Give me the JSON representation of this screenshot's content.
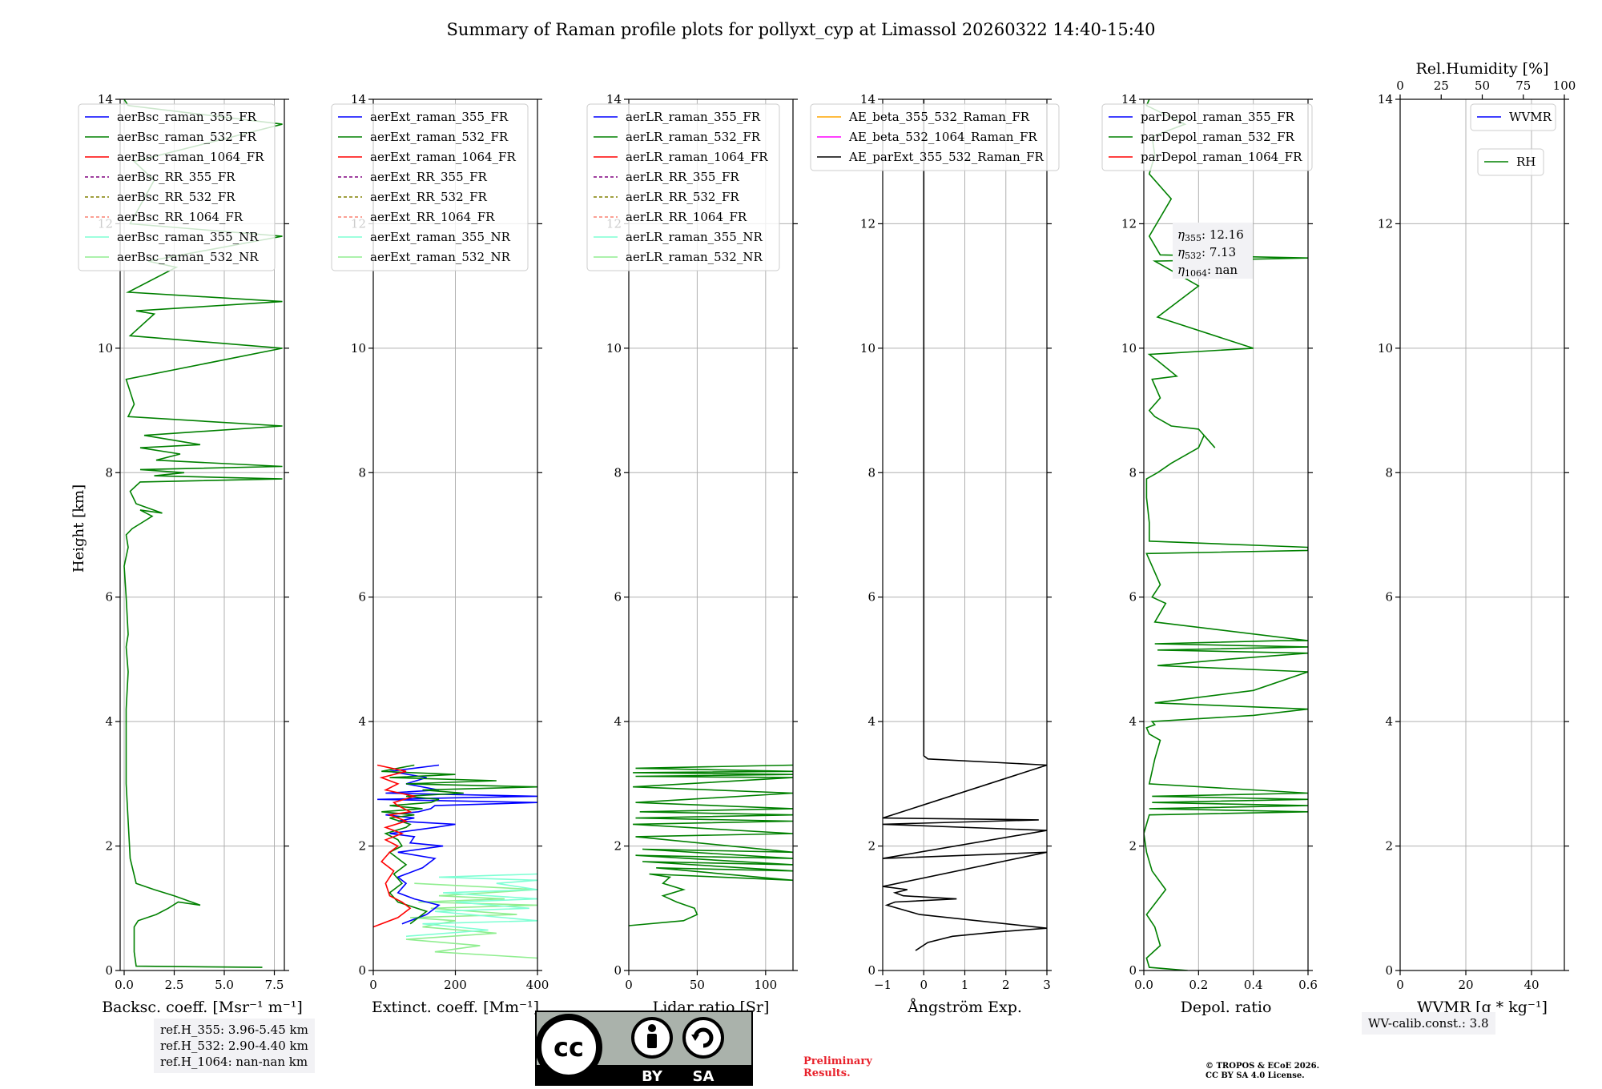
{
  "title": "Summary of Raman profile plots for pollyxt_cyp at Limassol 20260322 14:40-15:40",
  "ylabel": "Height [km]",
  "ytick_labels": [
    "0",
    "2",
    "4",
    "6",
    "8",
    "10",
    "12",
    "14"
  ],
  "colors": {
    "blue": "#0000ff",
    "green": "#008000",
    "red": "#ff0000",
    "purple": "#800080",
    "olive": "#808000",
    "salmon": "#fa8072",
    "cyan": "#7fffd4",
    "lightgreen": "#90ee90",
    "orange": "#ffa500",
    "magenta": "#ff00ff",
    "black": "#000000",
    "grid": "#b0b0b0"
  },
  "chart_data": [
    {
      "type": "line",
      "id": "bsc",
      "xlabel": "Backsc. coeff. [Msr⁻¹ m⁻¹]",
      "xlim": [
        -0.2,
        8.0
      ],
      "ylim": [
        0,
        14
      ],
      "xticks": [
        0,
        2.5,
        5.0,
        7.5
      ],
      "xtick_labels": [
        "0.0",
        "2.5",
        "5.0",
        "7.5"
      ],
      "legend": [
        "aerBsc_raman_355_FR",
        "aerBsc_raman_532_FR",
        "aerBsc_raman_1064_FR",
        "aerBsc_RR_355_FR",
        "aerBsc_RR_532_FR",
        "aerBsc_RR_1064_FR",
        "aerBsc_raman_355_NR",
        "aerBsc_raman_532_NR"
      ],
      "legend_colors": [
        "blue",
        "green",
        "red",
        "purple",
        "olive",
        "salmon",
        "cyan",
        "lightgreen"
      ],
      "legend_dashed": [
        false,
        false,
        false,
        true,
        true,
        true,
        false,
        false
      ],
      "legend_loc": "top-left",
      "series": [
        {
          "name": "aerBsc_raman_532_FR",
          "color": "green",
          "x": [
            6.9,
            0.6,
            0.5,
            0.5,
            0.5,
            0.7,
            1.6,
            2.2,
            2.7,
            3.8,
            2.5,
            1.5,
            0.6,
            0.3,
            0.2,
            0.1,
            0.1,
            0.1,
            0.2,
            0.1,
            0.2,
            0.1,
            0.0,
            0.2,
            0.1,
            0.4,
            0.9,
            1.4,
            0.8,
            1.9,
            0.6,
            0.3,
            0.8,
            7.9,
            1.5,
            3.0,
            0.8,
            7.9,
            1.6,
            2.8,
            0.8,
            3.8,
            1.0,
            7.9,
            0.2,
            0.5,
            0.1,
            7.9,
            0.3,
            1.5,
            0.6,
            7.9,
            0.2,
            2.6,
            1.2,
            7.9,
            0.3,
            1.5,
            0.5,
            7.9,
            0.2,
            0.0
          ],
          "y": [
            0.05,
            0.07,
            0.3,
            0.5,
            0.7,
            0.8,
            0.9,
            1.0,
            1.1,
            1.05,
            1.2,
            1.3,
            1.4,
            1.8,
            2.4,
            3.0,
            3.6,
            4.2,
            4.8,
            5.2,
            5.4,
            6.0,
            6.5,
            6.8,
            7.0,
            7.1,
            7.2,
            7.3,
            7.4,
            7.35,
            7.5,
            7.7,
            7.85,
            7.9,
            7.95,
            8.0,
            8.05,
            8.1,
            8.2,
            8.3,
            8.4,
            8.45,
            8.6,
            8.75,
            8.9,
            9.1,
            9.5,
            10.0,
            10.2,
            10.55,
            10.6,
            10.75,
            10.9,
            11.3,
            11.4,
            11.8,
            12.0,
            12.7,
            13.0,
            13.6,
            13.9,
            14.0
          ]
        }
      ]
    },
    {
      "type": "line",
      "id": "ext",
      "xlabel": "Extinct. coeff. [Mm⁻¹]",
      "xlim": [
        0,
        400
      ],
      "ylim": [
        0,
        14
      ],
      "xticks": [
        0,
        200,
        400
      ],
      "xtick_labels": [
        "0",
        "200",
        "400"
      ],
      "legend": [
        "aerExt_raman_355_FR",
        "aerExt_raman_532_FR",
        "aerExt_raman_1064_FR",
        "aerExt_RR_355_FR",
        "aerExt_RR_532_FR",
        "aerExt_RR_1064_FR",
        "aerExt_raman_355_NR",
        "aerExt_raman_532_NR"
      ],
      "legend_colors": [
        "blue",
        "green",
        "red",
        "purple",
        "olive",
        "salmon",
        "cyan",
        "lightgreen"
      ],
      "legend_dashed": [
        false,
        false,
        false,
        true,
        true,
        true,
        false,
        false
      ],
      "legend_loc": "top-left",
      "series": [
        {
          "name": "aerExt_raman_532_NR",
          "color": "lightgreen",
          "x": [
            400,
            150,
            260,
            80,
            300,
            120,
            200,
            90,
            350,
            140,
            400,
            110,
            320,
            160,
            400,
            100
          ],
          "y": [
            0.2,
            0.3,
            0.4,
            0.5,
            0.6,
            0.7,
            0.8,
            0.85,
            0.9,
            1.0,
            1.05,
            1.1,
            1.15,
            1.2,
            1.3,
            1.4
          ]
        },
        {
          "name": "aerExt_raman_355_NR",
          "color": "cyan",
          "x": [
            80,
            280,
            120,
            400,
            150,
            380,
            200,
            400,
            170,
            400,
            300,
            400,
            160,
            400
          ],
          "y": [
            0.55,
            0.65,
            0.75,
            0.8,
            0.95,
            1.0,
            1.1,
            1.15,
            1.25,
            1.3,
            1.4,
            1.45,
            1.5,
            1.55
          ]
        },
        {
          "name": "aerExt_raman_355_FR",
          "color": "blue",
          "x": [
            70,
            130,
            150,
            160,
            100,
            60,
            80,
            60,
            120,
            150,
            60,
            170,
            90,
            100,
            40,
            150,
            200,
            60,
            100,
            30,
            110,
            140,
            150,
            400,
            10,
            400,
            30,
            160,
            80,
            130,
            40,
            160
          ],
          "y": [
            0.75,
            0.9,
            1.0,
            1.05,
            1.15,
            1.25,
            1.4,
            1.5,
            1.65,
            1.8,
            1.9,
            2.0,
            2.05,
            2.15,
            2.2,
            2.3,
            2.35,
            2.4,
            2.45,
            2.5,
            2.55,
            2.6,
            2.65,
            2.7,
            2.75,
            2.8,
            2.85,
            2.9,
            3.0,
            3.1,
            3.2,
            3.3
          ]
        },
        {
          "name": "aerExt_raman_532_FR",
          "color": "green",
          "x": [
            90,
            110,
            130,
            60,
            40,
            70,
            50,
            80,
            60,
            40,
            70,
            60,
            30,
            80,
            90,
            40,
            100,
            20,
            120,
            40,
            140,
            160,
            80,
            220,
            120,
            400,
            80,
            300,
            40,
            200,
            20,
            100
          ],
          "y": [
            0.75,
            0.85,
            0.95,
            1.1,
            1.25,
            1.4,
            1.55,
            1.7,
            1.8,
            1.9,
            2.0,
            2.1,
            2.2,
            2.3,
            2.35,
            2.45,
            2.5,
            2.55,
            2.6,
            2.65,
            2.7,
            2.75,
            2.8,
            2.85,
            2.9,
            2.95,
            3.0,
            3.05,
            3.1,
            3.15,
            3.2,
            3.3
          ]
        },
        {
          "name": "aerExt_raman_1064_FR",
          "color": "red",
          "x": [
            0,
            60,
            90,
            70,
            40,
            30,
            50,
            20,
            40,
            60,
            30,
            70,
            30,
            80,
            40,
            90,
            60,
            50,
            100,
            30,
            60,
            20,
            80,
            10
          ],
          "y": [
            0.7,
            0.85,
            1.0,
            1.1,
            1.2,
            1.4,
            1.6,
            1.75,
            1.9,
            2.0,
            2.1,
            2.2,
            2.3,
            2.4,
            2.5,
            2.55,
            2.65,
            2.7,
            2.8,
            2.9,
            3.0,
            3.1,
            3.2,
            3.3
          ]
        }
      ]
    },
    {
      "type": "line",
      "id": "lr",
      "xlabel": "Lidar ratio [Sr]",
      "xlim": [
        0,
        120
      ],
      "ylim": [
        0,
        14
      ],
      "xticks": [
        0,
        50,
        100
      ],
      "xtick_labels": [
        "0",
        "50",
        "100"
      ],
      "legend": [
        "aerLR_raman_355_FR",
        "aerLR_raman_532_FR",
        "aerLR_raman_1064_FR",
        "aerLR_RR_355_FR",
        "aerLR_RR_532_FR",
        "aerLR_RR_1064_FR",
        "aerLR_raman_355_NR",
        "aerLR_raman_532_NR"
      ],
      "legend_colors": [
        "blue",
        "green",
        "red",
        "purple",
        "olive",
        "salmon",
        "cyan",
        "lightgreen"
      ],
      "legend_dashed": [
        false,
        false,
        false,
        true,
        true,
        true,
        false,
        false
      ],
      "legend_loc": "top-left",
      "series": [
        {
          "name": "aerLR_raman_532_FR",
          "color": "green",
          "x": [
            0,
            40,
            50,
            48,
            35,
            25,
            40,
            25,
            30,
            15,
            120,
            20,
            120,
            10,
            120,
            5,
            120,
            10,
            120,
            5,
            120,
            3,
            120,
            5,
            120,
            8,
            120,
            5,
            120,
            3,
            120,
            5,
            120,
            3,
            120,
            5,
            120
          ],
          "y": [
            0.72,
            0.8,
            0.9,
            1.0,
            1.1,
            1.2,
            1.3,
            1.4,
            1.5,
            1.55,
            1.45,
            1.65,
            1.6,
            1.75,
            1.7,
            1.85,
            1.8,
            1.95,
            1.9,
            2.15,
            2.2,
            2.35,
            2.4,
            2.45,
            2.5,
            2.55,
            2.6,
            2.7,
            2.85,
            2.95,
            3.1,
            3.12,
            3.15,
            3.18,
            3.2,
            3.25,
            3.3
          ]
        }
      ]
    },
    {
      "type": "line",
      "id": "ae",
      "xlabel": "Ångström Exp.",
      "xlim": [
        -1,
        3
      ],
      "ylim": [
        0,
        14
      ],
      "xticks": [
        -1,
        0,
        1,
        2,
        3
      ],
      "xtick_labels": [
        "−1",
        "0",
        "1",
        "2",
        "3"
      ],
      "legend": [
        "AE_beta_355_532_Raman_FR",
        "AE_beta_532_1064_Raman_FR",
        "AE_parExt_355_532_Raman_FR"
      ],
      "legend_colors": [
        "orange",
        "magenta",
        "black"
      ],
      "legend_dashed": [
        false,
        false,
        false
      ],
      "legend_loc": "top-left",
      "series": [
        {
          "name": "AE_parExt_355_532_Raman_FR",
          "color": "black",
          "x": [
            -0.2,
            0.1,
            0.7,
            1.8,
            3.0,
            -0.1,
            -0.9,
            -0.7,
            0.8,
            -0.5,
            -0.7,
            -0.4,
            -1.0,
            3.0,
            -1.0,
            3.0,
            -1.0,
            2.8,
            -1.0,
            3.0,
            0.1,
            0.0,
            0.0,
            0.0,
            0.0
          ],
          "y": [
            0.32,
            0.45,
            0.55,
            0.62,
            0.68,
            0.9,
            1.05,
            1.1,
            1.15,
            1.2,
            1.25,
            1.3,
            1.35,
            1.9,
            1.8,
            2.25,
            2.35,
            2.42,
            2.45,
            3.3,
            3.4,
            3.45,
            8.0,
            12.0,
            14.0
          ]
        }
      ]
    },
    {
      "type": "line",
      "id": "depol",
      "xlabel": "Depol. ratio",
      "xlim": [
        0,
        0.6
      ],
      "ylim": [
        0,
        14
      ],
      "xticks": [
        0,
        0.2,
        0.4,
        0.6
      ],
      "xtick_labels": [
        "0.0",
        "0.2",
        "0.4",
        "0.6"
      ],
      "legend": [
        "parDepol_raman_355_FR",
        "parDepol_raman_532_FR",
        "parDepol_raman_1064_FR"
      ],
      "legend_colors": [
        "blue",
        "green",
        "red"
      ],
      "legend_dashed": [
        false,
        false,
        false
      ],
      "legend_loc": "top-left",
      "annotation": {
        "eta355": "12.16",
        "eta532": "7.13",
        "eta1064": "nan"
      },
      "series": [
        {
          "name": "parDepol_raman_532_FR",
          "color": "green",
          "x": [
            0.16,
            0.02,
            0.01,
            0.06,
            0.04,
            0.01,
            0.08,
            0.03,
            0.01,
            0.0,
            0.02,
            0.6,
            0.02,
            0.6,
            0.03,
            0.6,
            0.03,
            0.6,
            0.02,
            0.04,
            0.06,
            0.02,
            0.01,
            0.04,
            0.03,
            0.4,
            0.6,
            0.04,
            0.4,
            0.6,
            0.05,
            0.3,
            0.6,
            0.05,
            0.6,
            0.04,
            0.5,
            0.6,
            0.6,
            0.04,
            0.08,
            0.03,
            0.06,
            0.03,
            0.01,
            0.6,
            0.6,
            0.02,
            0.02,
            0.01,
            0.01,
            0.05,
            0.1,
            0.2,
            0.22,
            0.24,
            0.26,
            0.2,
            0.1,
            0.04,
            0.02,
            0.06,
            0.03,
            0.12,
            0.05,
            0.02,
            0.4,
            0.05,
            0.2,
            0.04,
            0.6,
            0.06,
            0.02,
            0.1,
            0.02,
            0.04,
            0.03,
            0.15,
            0.01,
            0.02
          ],
          "y": [
            0.0,
            0.05,
            0.2,
            0.4,
            0.7,
            0.9,
            1.3,
            1.6,
            1.9,
            2.2,
            2.5,
            2.55,
            2.6,
            2.65,
            2.7,
            2.75,
            2.8,
            2.85,
            3.0,
            3.4,
            3.7,
            3.8,
            3.9,
            3.95,
            4.0,
            4.1,
            4.2,
            4.3,
            4.5,
            4.8,
            4.9,
            5.0,
            5.1,
            5.15,
            5.2,
            5.25,
            5.3,
            5.3,
            5.3,
            5.6,
            5.9,
            6.0,
            6.2,
            6.5,
            6.7,
            6.75,
            6.8,
            6.9,
            7.2,
            7.6,
            7.9,
            8.0,
            8.15,
            8.4,
            8.6,
            8.5,
            8.4,
            8.7,
            8.75,
            8.9,
            9.0,
            9.2,
            9.5,
            9.55,
            9.8,
            9.9,
            10.0,
            10.5,
            11.0,
            11.4,
            11.45,
            11.5,
            11.8,
            12.4,
            12.8,
            13.1,
            13.4,
            13.6,
            13.9,
            14.0
          ]
        }
      ]
    },
    {
      "type": "line",
      "id": "wv",
      "xlabel": "WVMR [g * kg⁻¹]",
      "xlim": [
        0,
        50
      ],
      "ylim": [
        0,
        14
      ],
      "xticks": [
        0,
        20,
        40
      ],
      "xtick_labels": [
        "0",
        "20",
        "40"
      ],
      "top_xlabel": "Rel.Humidity [%]",
      "top_xlim": [
        0,
        100
      ],
      "top_xticks": [
        0,
        25,
        50,
        75,
        100
      ],
      "top_xtick_labels": [
        "0",
        "25",
        "50",
        "75",
        "100"
      ],
      "legend": [
        "WVMR"
      ],
      "legend_colors": [
        "blue"
      ],
      "legend2": [
        "RH"
      ],
      "legend2_colors": [
        "green"
      ],
      "legend_loc": "top-right",
      "series": []
    }
  ],
  "notes": {
    "refh": "ref.H_355: 3.96-5.45 km\nref.H_532: 2.90-4.40 km\nref.H_1064: nan-nan km",
    "wvcalib": "WV-calib.const.: 3.8",
    "prelim": "Preliminary\nResults.",
    "copyright": "© TROPOS & ECoE 2026.\nCC BY SA 4.0 License.",
    "cc_by": "BY",
    "cc_sa": "SA"
  }
}
